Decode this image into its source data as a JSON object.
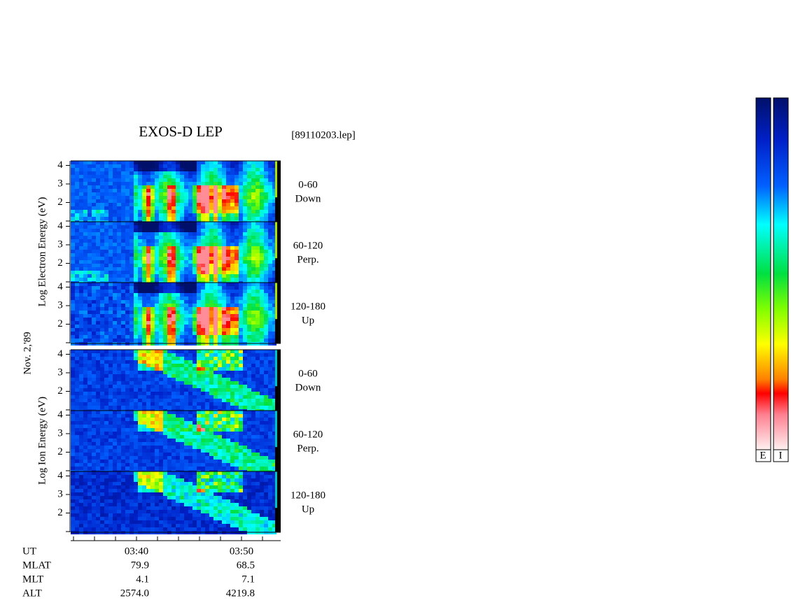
{
  "title": "EXOS-D LEP",
  "file": "[89110203.lep]",
  "date": "Nov. 2,'89",
  "electron_axis_label": "Log  Electron  Energy (eV)",
  "ion_axis_label": "Log  Ion  Energy (eV)",
  "yticks": [
    2,
    3,
    4
  ],
  "electron_panels": [
    {
      "angle": "0-60",
      "direction": "Down"
    },
    {
      "angle": "60-120",
      "direction": "Perp."
    },
    {
      "angle": "120-180",
      "direction": "Up"
    }
  ],
  "ion_panels": [
    {
      "angle": "0-60",
      "direction": "Down"
    },
    {
      "angle": "60-120",
      "direction": "Perp."
    },
    {
      "angle": "120-180",
      "direction": "Up"
    }
  ],
  "time_ticks": [
    "03:40",
    "03:50"
  ],
  "orbit_rows": [
    {
      "name": "UT",
      "values": []
    },
    {
      "name": "MLAT",
      "values": [
        "79.9",
        "68.5"
      ]
    },
    {
      "name": "MLT",
      "values": [
        "4.1",
        "7.1"
      ]
    },
    {
      "name": "ALT",
      "values": [
        "2574.0",
        "4219.8"
      ]
    }
  ],
  "colorbar_labels": [
    "E",
    "I"
  ]
}
